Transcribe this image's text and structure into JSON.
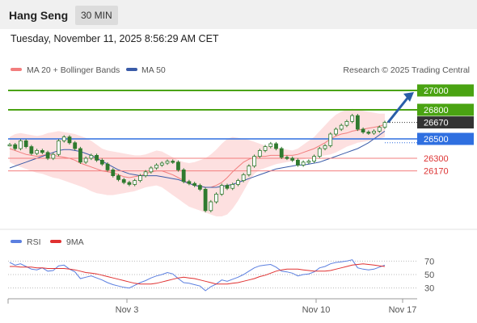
{
  "header": {
    "title": "Hang Seng",
    "timeframe": "30 MIN"
  },
  "datetime": "Tuesday, November 11, 2025 8:56:29 AM CET",
  "legend": {
    "ma20": "MA 20 + Bollinger Bands",
    "ma50": "MA 50",
    "credit": "Research © 2025 Trading Central",
    "rsi": "RSI",
    "rsi_ma": "9MA"
  },
  "colors": {
    "resistance": "#4aa312",
    "pivot": "#2f6fe0",
    "support": "#f27d7d",
    "current": "#333333",
    "arrow": "#2a5ea8",
    "candle": "#2f7a2f",
    "bollinger_fill": "#fde0e0",
    "ma20": "#f27d7d",
    "ma50": "#3a5ba8",
    "rsi": "#5b7fe0",
    "rsi_ma": "#e03030"
  },
  "chart_data": {
    "type": "line",
    "title": "Hang Seng",
    "y_range": [
      25600,
      27100
    ],
    "x_ticks": [
      "Nov 3",
      "Nov 10",
      "Nov 17"
    ],
    "levels": [
      {
        "label": "27000",
        "value": 27000,
        "kind": "resistance"
      },
      {
        "label": "26800",
        "value": 26800,
        "kind": "resistance"
      },
      {
        "label": "26670",
        "value": 26670,
        "kind": "current"
      },
      {
        "label": "26500",
        "value": 26500,
        "kind": "pivot"
      },
      {
        "label": "26300",
        "value": 26300,
        "kind": "support"
      },
      {
        "label": "26170",
        "value": 26170,
        "kind": "support"
      }
    ],
    "price": [
      26440,
      26400,
      26480,
      26420,
      26350,
      26380,
      26360,
      26300,
      26340,
      26480,
      26520,
      26460,
      26400,
      26260,
      26300,
      26330,
      26280,
      26240,
      26180,
      26120,
      26080,
      26050,
      26030,
      26070,
      26120,
      26160,
      26200,
      26230,
      26250,
      26270,
      26260,
      26180,
      26060,
      26040,
      26020,
      25980,
      25760,
      25850,
      25930,
      26020,
      25990,
      26030,
      26070,
      26130,
      26220,
      26320,
      26380,
      26420,
      26450,
      26400,
      26310,
      26300,
      26280,
      26230,
      26260,
      26270,
      26320,
      26400,
      26430,
      26550,
      26600,
      26640,
      26680,
      26740,
      26600,
      26570,
      26560,
      26580,
      26620,
      26670
    ],
    "ma20": [
      26400,
      26380,
      26360,
      26340,
      26330,
      26320,
      26330,
      26340,
      26330,
      26320,
      26310,
      26300,
      26280,
      26250,
      26230,
      26210,
      26190,
      26170,
      26160,
      26150,
      26130,
      26110,
      26100,
      26110,
      26120,
      26140,
      26160,
      26170,
      26170,
      26150,
      26130,
      26100,
      26070,
      26040,
      26020,
      26010,
      26000,
      26000,
      26020,
      26050,
      26100,
      26160,
      26210,
      26260,
      26290,
      26310,
      26320,
      26320,
      26330,
      26330,
      26330,
      26330,
      26330,
      26340,
      26360,
      26380,
      26400,
      26430,
      26460,
      26500,
      26530,
      26550,
      26560,
      26580,
      26590,
      26600,
      26610,
      26620,
      26630,
      26650
    ],
    "bb_upper": [
      26520,
      26550,
      26560,
      26550,
      26540,
      26530,
      26540,
      26560,
      26570,
      26580,
      26570,
      26560,
      26550,
      26530,
      26510,
      26480,
      26440,
      26400,
      26380,
      26370,
      26360,
      26350,
      26340,
      26330,
      26330,
      26340,
      26360,
      26380,
      26370,
      26340,
      26310,
      26280,
      26260,
      26250,
      26260,
      26280,
      26300,
      26340,
      26390,
      26450,
      26500,
      26520,
      26510,
      26500,
      26490,
      26470,
      26450,
      26430,
      26420,
      26410,
      26400,
      26390,
      26380,
      26400,
      26440,
      26480,
      26520,
      26580,
      26640,
      26700,
      26750,
      26780,
      26800,
      26810,
      26800,
      26790,
      26780,
      26770,
      26760,
      26760
    ],
    "bb_lower": [
      26260,
      26230,
      26210,
      26190,
      26170,
      26150,
      26140,
      26120,
      26100,
      26090,
      26070,
      26050,
      26030,
      26010,
      25990,
      25960,
      25940,
      25930,
      25920,
      25920,
      25930,
      25940,
      25950,
      25960,
      25980,
      26000,
      26010,
      26020,
      26000,
      25960,
      25920,
      25880,
      25840,
      25800,
      25780,
      25760,
      25740,
      25720,
      25700,
      25700,
      25720,
      25780,
      25860,
      25960,
      26060,
      26140,
      26180,
      26200,
      26220,
      26240,
      26250,
      26260,
      26270,
      26280,
      26290,
      26300,
      26310,
      26320,
      26330,
      26340,
      26360,
      26390,
      26420,
      26440,
      26460,
      26470,
      26480,
      26490,
      26500,
      26520
    ],
    "ma50": [
      26200,
      26220,
      26240,
      26260,
      26280,
      26300,
      26320,
      26340,
      26360,
      26380,
      26390,
      26390,
      26380,
      26370,
      26350,
      26330,
      26300,
      26270,
      26240,
      26210,
      26180,
      26160,
      26140,
      26130,
      26120,
      26120,
      26120,
      26120,
      26110,
      26100,
      26090,
      26080,
      26060,
      26040,
      26020,
      26010,
      26000,
      26000,
      26000,
      26010,
      26020,
      26030,
      26050,
      26070,
      26090,
      26110,
      26130,
      26150,
      26170,
      26190,
      26200,
      26210,
      26220,
      26230,
      26230,
      26240,
      26250,
      26260,
      26280,
      26300,
      26320,
      26340,
      26360,
      26380,
      26400,
      26430,
      26460,
      26500,
      26540,
      26580
    ],
    "rsi": {
      "y_ticks": [
        70,
        50,
        30
      ],
      "values": [
        68,
        64,
        66,
        62,
        58,
        57,
        60,
        55,
        56,
        63,
        64,
        58,
        54,
        44,
        46,
        48,
        45,
        42,
        38,
        35,
        33,
        31,
        30,
        34,
        38,
        41,
        45,
        48,
        50,
        53,
        51,
        44,
        38,
        37,
        35,
        33,
        26,
        32,
        36,
        42,
        40,
        43,
        46,
        50,
        55,
        60,
        63,
        64,
        65,
        61,
        55,
        54,
        52,
        48,
        50,
        51,
        54,
        60,
        62,
        66,
        68,
        69,
        70,
        72,
        60,
        58,
        57,
        58,
        61,
        64
      ],
      "ma9": [
        62,
        62,
        61,
        61,
        61,
        60,
        60,
        59,
        59,
        59,
        59,
        58,
        57,
        55,
        53,
        52,
        51,
        49,
        47,
        45,
        43,
        41,
        39,
        37,
        36,
        36,
        36,
        37,
        39,
        41,
        43,
        45,
        46,
        45,
        44,
        42,
        40,
        38,
        36,
        36,
        36,
        37,
        38,
        40,
        42,
        44,
        47,
        49,
        52,
        55,
        57,
        58,
        58,
        58,
        57,
        56,
        55,
        55,
        55,
        56,
        58,
        60,
        62,
        64,
        65,
        66,
        65,
        64,
        63,
        62
      ]
    }
  }
}
